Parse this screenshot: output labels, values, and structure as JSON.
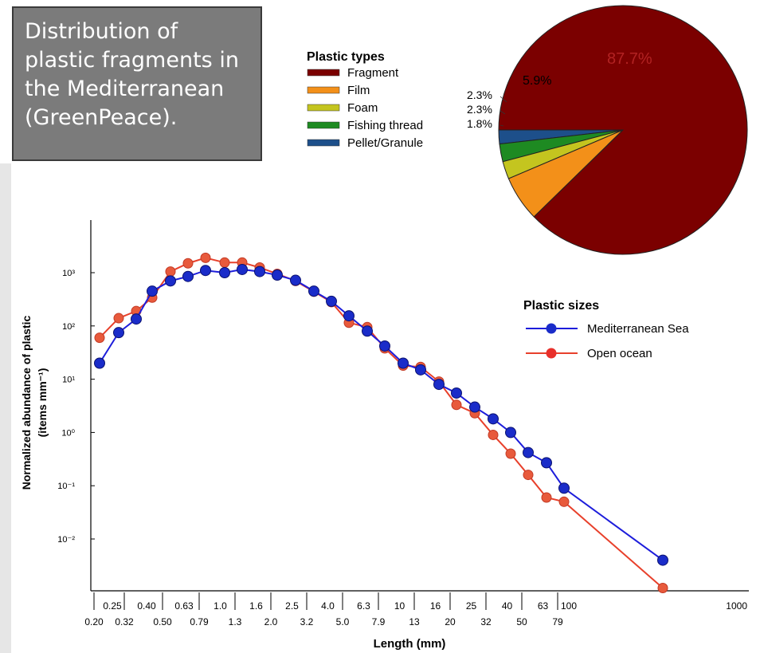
{
  "slide_title": "Distribution of plastic fragments in the Mediterranean (GreenPeace).",
  "chart_data": [
    {
      "type": "pie",
      "legend_title": "Plastic types",
      "categories": [
        "Fragment",
        "Film",
        "Foam",
        "Fishing thread",
        "Pellet/Granule"
      ],
      "values": [
        87.7,
        5.9,
        2.3,
        2.3,
        1.8
      ],
      "labels": [
        "87.7%",
        "5.9%",
        "2.3%",
        "2.3%",
        "1.8%"
      ],
      "colors": [
        "#7b0000",
        "#f39019",
        "#c4c51f",
        "#1e8a22",
        "#1d4f8a"
      ]
    },
    {
      "type": "line",
      "scale": "log-log",
      "xlabel": "Length (mm)",
      "ylabel": "Normalized abundance of plastic",
      "ylabel_units": "(items mm⁻¹)",
      "legend_title": "Plastic sizes",
      "y_ticks": [
        "10³",
        "10²",
        "10¹",
        "10⁰",
        "10⁻¹",
        "10⁻²"
      ],
      "x_ticks_upper": [
        "0.25",
        "0.40",
        "0.63",
        "1.0",
        "1.6",
        "2.5",
        "4.0",
        "6.3",
        "10",
        "16",
        "25",
        "40",
        "63",
        "100"
      ],
      "x_ticks_lower": [
        "0.20",
        "0.32",
        "0.50",
        "0.79",
        "1.3",
        "2.0",
        "3.2",
        "5.0",
        "7.9",
        "13",
        "20",
        "32",
        "50",
        "79"
      ],
      "x_tick_end": "1000",
      "series": [
        {
          "name": "Mediterranean Sea",
          "color": "#1d1ddb",
          "x": [
            0.22,
            0.28,
            0.36,
            0.45,
            0.56,
            0.71,
            0.89,
            1.12,
            1.41,
            1.78,
            2.24,
            2.82,
            3.55,
            4.47,
            5.62,
            7.08,
            8.91,
            11.2,
            14.1,
            17.8,
            22.4,
            28.2,
            35.5,
            44.7,
            56.2,
            70.8,
            89.1,
            450
          ],
          "y": [
            20,
            75,
            135,
            450,
            700,
            850,
            1100,
            1000,
            1150,
            1050,
            900,
            720,
            450,
            290,
            155,
            80,
            42,
            20,
            15,
            8,
            5.5,
            3,
            1.8,
            1,
            0.42,
            0.27,
            0.09,
            0.004
          ]
        },
        {
          "name": "Open ocean",
          "color": "#e8402b",
          "x": [
            0.22,
            0.28,
            0.36,
            0.45,
            0.56,
            0.71,
            0.89,
            1.12,
            1.41,
            1.78,
            2.24,
            2.82,
            3.55,
            4.47,
            5.62,
            7.08,
            8.91,
            11.2,
            14.1,
            17.8,
            22.4,
            28.2,
            35.5,
            44.7,
            56.2,
            70.8,
            89.1,
            450
          ],
          "y": [
            60,
            140,
            190,
            340,
            1050,
            1500,
            1900,
            1550,
            1550,
            1250,
            950,
            700,
            440,
            280,
            115,
            95,
            38,
            18,
            17,
            9,
            3.3,
            2.3,
            0.9,
            0.4,
            0.16,
            0.06,
            0.05,
            0.0012
          ]
        }
      ]
    }
  ]
}
